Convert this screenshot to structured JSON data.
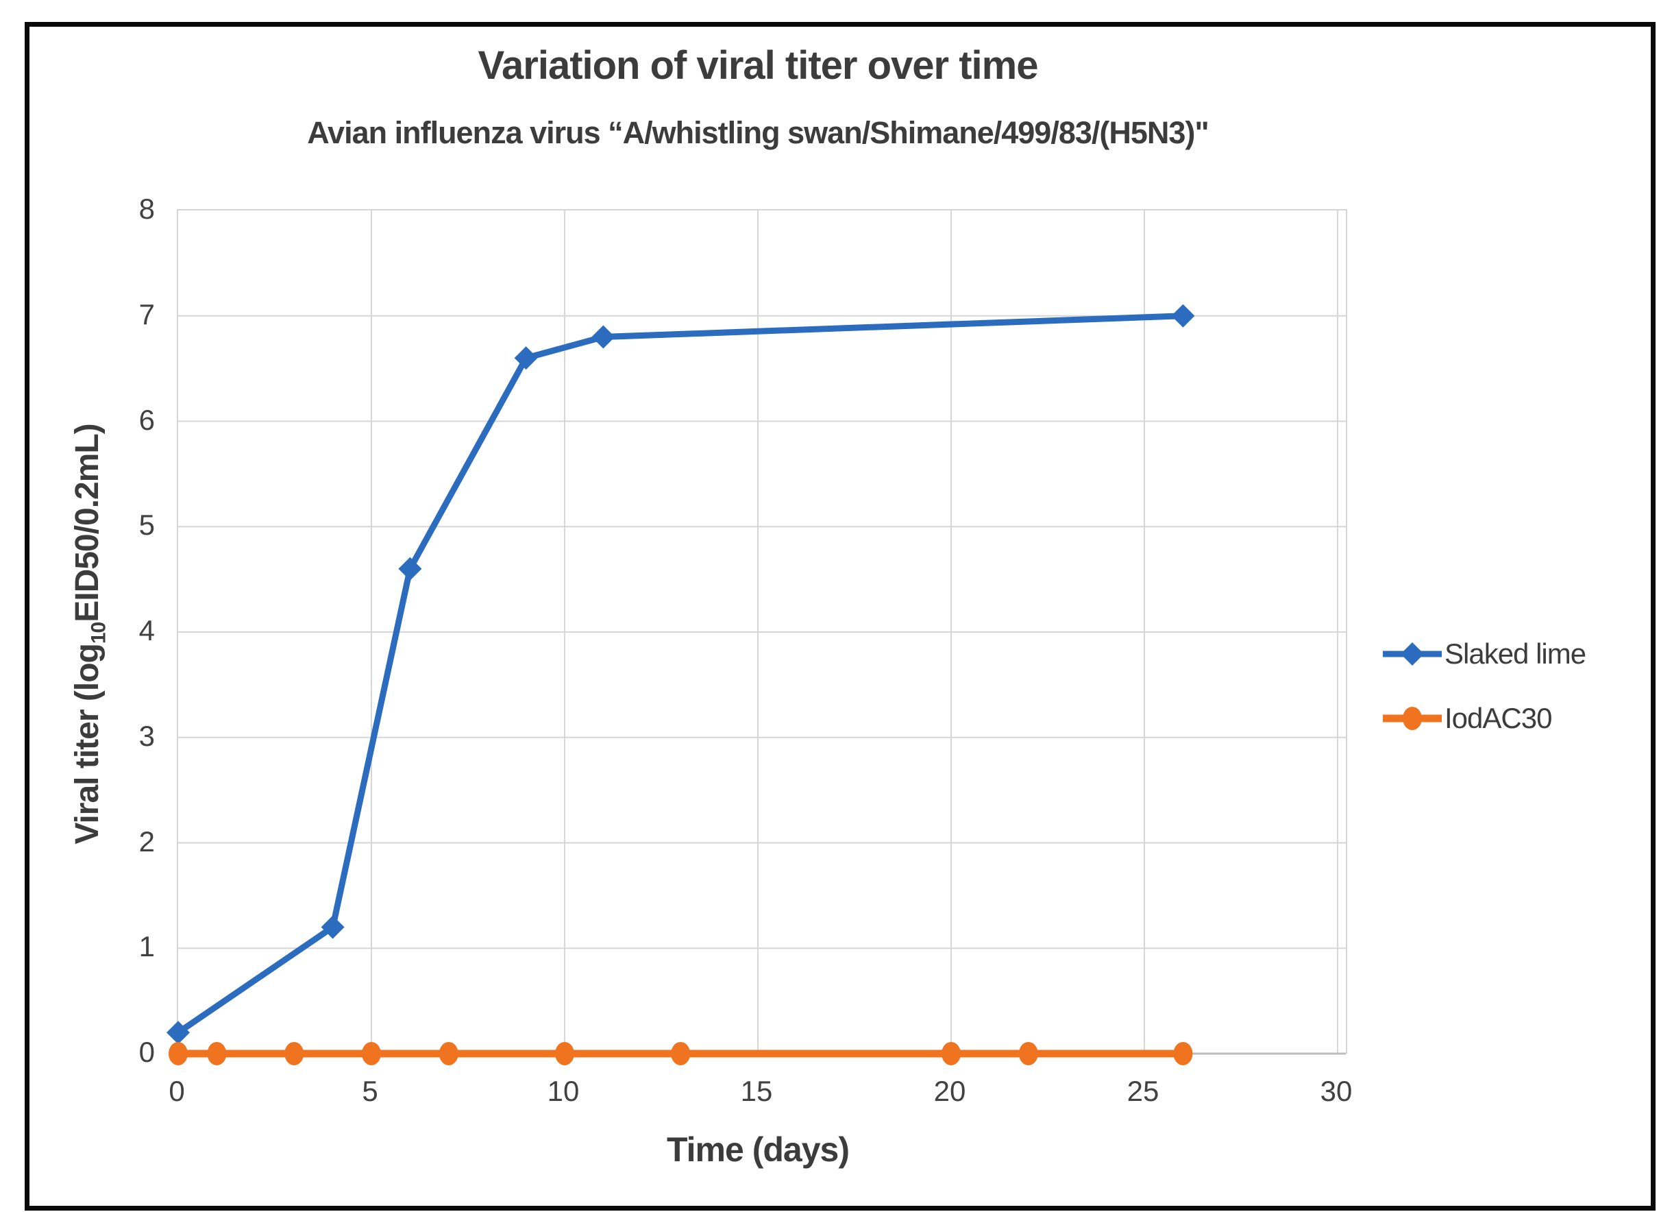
{
  "chart_data": {
    "type": "line",
    "title": "Variation of viral titer over time",
    "subtitle": "Avian influenza virus “A/whistling swan/Shimane/499/83/(H5N3)\"",
    "xlabel": "Time (days)",
    "ylabel": "Viral titer (log10EID50/0.2mL)",
    "ylabel_parts": {
      "pre": "Viral titer (log",
      "sub": "10",
      "post": "EID50/0.2mL)"
    },
    "xlim": [
      0,
      30
    ],
    "ylim": [
      0,
      8
    ],
    "xticks": [
      0,
      5,
      10,
      15,
      20,
      25,
      30
    ],
    "yticks": [
      0,
      1,
      2,
      3,
      4,
      5,
      6,
      7,
      8
    ],
    "grid": true,
    "legend_position": "right",
    "series": [
      {
        "name": "Slaked lime",
        "color": "#2b6cbe",
        "marker": "diamond",
        "x": [
          0,
          4,
          6,
          9,
          11,
          26
        ],
        "y": [
          0.2,
          1.2,
          4.6,
          6.6,
          6.8,
          7.0
        ]
      },
      {
        "name": "IodAC30",
        "color": "#f07420",
        "marker": "circle",
        "x": [
          0,
          1,
          3,
          5,
          7,
          10,
          13,
          20,
          22,
          26
        ],
        "y": [
          0,
          0,
          0,
          0,
          0,
          0,
          0,
          0,
          0,
          0
        ]
      }
    ],
    "colors": {
      "gridline": "#d6d6d6",
      "axis_line": "#bdbdbd",
      "text": "#3c3c3c",
      "tick_text": "#414141",
      "frame": "#0a0a0a"
    }
  }
}
